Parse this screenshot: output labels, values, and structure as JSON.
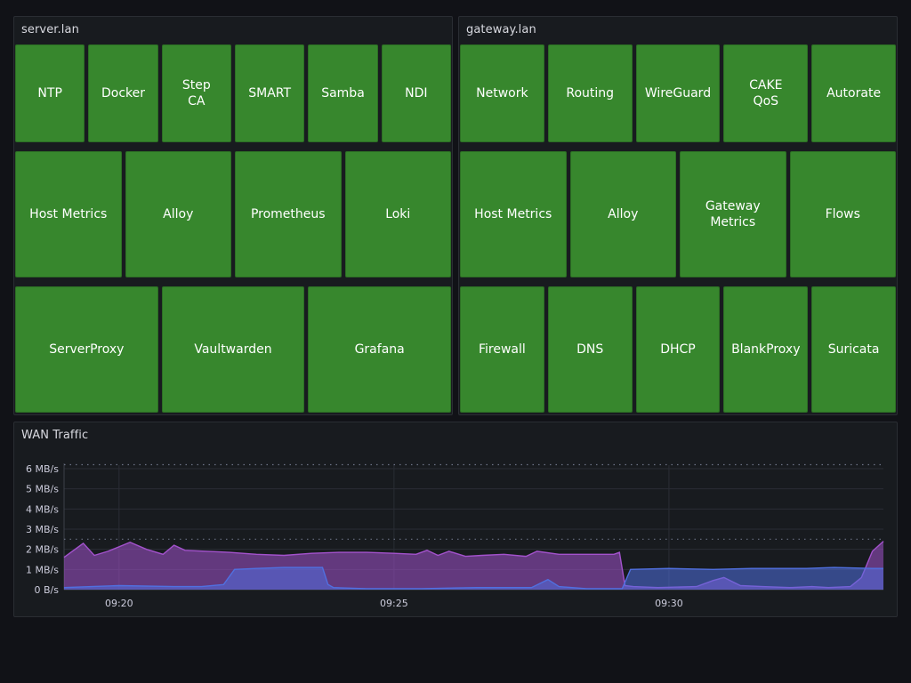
{
  "panels": {
    "server": {
      "title": "server.lan"
    },
    "gateway": {
      "title": "gateway.lan"
    },
    "wan": {
      "title": "WAN Traffic"
    }
  },
  "colors": {
    "tile_ok": "#37872d",
    "background": "#111217",
    "panel_bg": "#181b1f",
    "series_purple": "#a352cc",
    "series_blue": "#5070e0"
  },
  "server_rows": [
    [
      "NTP",
      "Docker",
      "Step\nCA",
      "SMART",
      "Samba",
      "NDI"
    ],
    [
      "Host Metrics",
      "Alloy",
      "Prometheus",
      "Loki"
    ],
    [
      "ServerProxy",
      "Vaultwarden",
      "Grafana"
    ]
  ],
  "gateway_rows": [
    [
      "Network",
      "Routing",
      "WireGuard",
      "CAKE\nQoS",
      "Autorate"
    ],
    [
      "Host Metrics",
      "Alloy",
      "Gateway\nMetrics",
      "Flows"
    ],
    [
      "Firewall",
      "DNS",
      "DHCP",
      "BlankProxy",
      "Suricata"
    ]
  ],
  "chart_data": {
    "type": "area",
    "title": "WAN Traffic",
    "y_unit": "MB/s",
    "ylim": [
      0,
      6
    ],
    "y_ticks": [
      "0 B/s",
      "1 MB/s",
      "2 MB/s",
      "3 MB/s",
      "4 MB/s",
      "5 MB/s",
      "6 MB/s"
    ],
    "x_ticks": [
      "09:20",
      "09:25",
      "09:30"
    ],
    "x_tick_minutes": [
      20,
      25,
      30
    ],
    "x_range_minutes": [
      19.0,
      33.9
    ],
    "grid": true,
    "threshold_lines": [
      2.5,
      6.2
    ],
    "series": [
      {
        "color": "#a352cc",
        "points": [
          [
            19.0,
            1.6
          ],
          [
            19.35,
            2.3
          ],
          [
            19.55,
            1.7
          ],
          [
            19.8,
            1.9
          ],
          [
            20.2,
            2.35
          ],
          [
            20.5,
            2.0
          ],
          [
            20.8,
            1.75
          ],
          [
            21.0,
            2.2
          ],
          [
            21.2,
            1.95
          ],
          [
            21.6,
            1.9
          ],
          [
            22.0,
            1.85
          ],
          [
            22.5,
            1.75
          ],
          [
            23.0,
            1.7
          ],
          [
            23.5,
            1.8
          ],
          [
            24.0,
            1.85
          ],
          [
            24.5,
            1.85
          ],
          [
            25.0,
            1.8
          ],
          [
            25.4,
            1.75
          ],
          [
            25.6,
            1.95
          ],
          [
            25.8,
            1.7
          ],
          [
            26.0,
            1.9
          ],
          [
            26.3,
            1.65
          ],
          [
            26.6,
            1.7
          ],
          [
            27.0,
            1.75
          ],
          [
            27.4,
            1.65
          ],
          [
            27.6,
            1.9
          ],
          [
            28.0,
            1.75
          ],
          [
            28.5,
            1.75
          ],
          [
            29.0,
            1.75
          ],
          [
            29.1,
            1.85
          ],
          [
            29.2,
            0.2
          ],
          [
            29.35,
            0.15
          ],
          [
            29.8,
            0.1
          ],
          [
            30.5,
            0.15
          ],
          [
            30.8,
            0.45
          ],
          [
            31.0,
            0.6
          ],
          [
            31.3,
            0.2
          ],
          [
            31.7,
            0.15
          ],
          [
            32.2,
            0.1
          ],
          [
            32.6,
            0.15
          ],
          [
            32.9,
            0.1
          ],
          [
            33.3,
            0.15
          ],
          [
            33.5,
            0.6
          ],
          [
            33.7,
            1.9
          ],
          [
            33.9,
            2.4
          ]
        ]
      },
      {
        "color": "#5070e0",
        "points": [
          [
            19.0,
            0.1
          ],
          [
            19.5,
            0.15
          ],
          [
            20.0,
            0.2
          ],
          [
            21.0,
            0.15
          ],
          [
            21.5,
            0.15
          ],
          [
            21.9,
            0.25
          ],
          [
            22.1,
            1.0
          ],
          [
            22.5,
            1.05
          ],
          [
            23.0,
            1.1
          ],
          [
            23.7,
            1.1
          ],
          [
            23.8,
            0.25
          ],
          [
            23.9,
            0.1
          ],
          [
            24.5,
            0.05
          ],
          [
            25.5,
            0.05
          ],
          [
            26.5,
            0.1
          ],
          [
            27.5,
            0.1
          ],
          [
            27.8,
            0.5
          ],
          [
            28.0,
            0.15
          ],
          [
            28.5,
            0.05
          ],
          [
            29.15,
            0.05
          ],
          [
            29.3,
            1.0
          ],
          [
            30.0,
            1.05
          ],
          [
            30.8,
            1.0
          ],
          [
            31.5,
            1.05
          ],
          [
            32.5,
            1.05
          ],
          [
            33.0,
            1.1
          ],
          [
            33.7,
            1.05
          ],
          [
            33.9,
            1.05
          ]
        ]
      }
    ]
  }
}
